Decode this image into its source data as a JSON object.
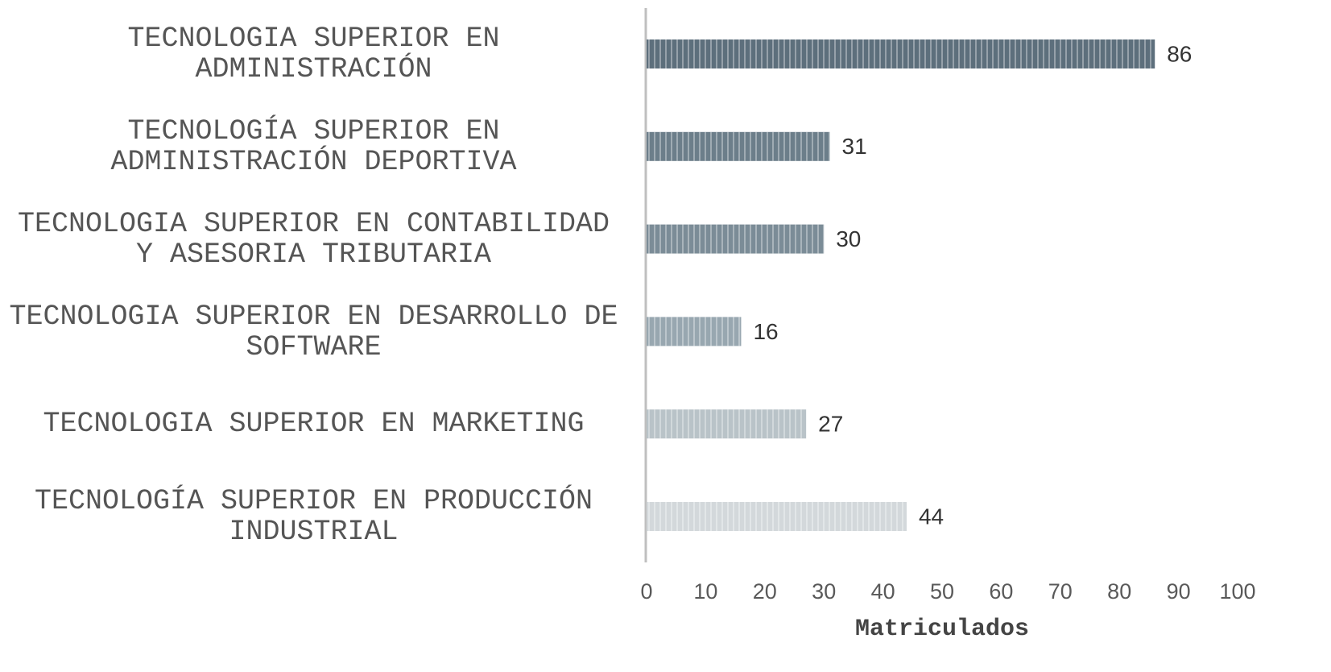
{
  "chart_data": {
    "type": "barh",
    "categories": [
      "TECNOLOGIA SUPERIOR EN ADMINISTRACIÓN",
      "TECNOLOGÍA SUPERIOR EN ADMINISTRACIÓN DEPORTIVA",
      "TECNOLOGIA SUPERIOR EN CONTABILIDAD Y ASESORIA TRIBUTARIA",
      "TECNOLOGIA SUPERIOR EN DESARROLLO DE SOFTWARE",
      "TECNOLOGIA SUPERIOR EN MARKETING",
      "TECNOLOGÍA SUPERIOR EN PRODUCCIÓN INDUSTRIAL"
    ],
    "values": [
      86,
      31,
      30,
      16,
      27,
      44
    ],
    "colors": [
      "#5d6f7c",
      "#6c7e8a",
      "#7b8c97",
      "#98a7b0",
      "#b9c3c8",
      "#d3d8db"
    ],
    "xlabel": "Matriculados",
    "xlim": [
      0,
      100
    ],
    "xticks": [
      0,
      10,
      20,
      30,
      40,
      50,
      60,
      70,
      80,
      90,
      100
    ],
    "grid": false
  }
}
